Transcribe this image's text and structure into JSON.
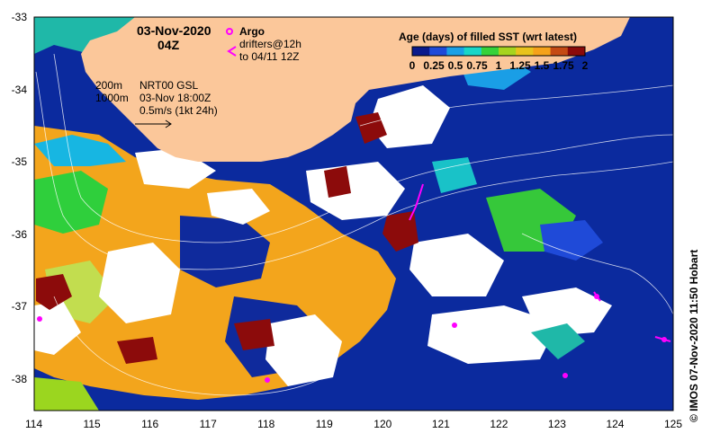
{
  "map": {
    "date": "03-Nov-2020",
    "hour": "04Z",
    "argo_label": "Argo",
    "drifters_label": "drifters@12h",
    "drifters_to": "to 04/11 12Z",
    "contour_200": "200m",
    "contour_1000": "1000m",
    "product": "NRT00 GSL",
    "product_time": "03-Nov 18:00Z",
    "scale": "0.5m/s (1kt 24h)",
    "credit": "© IMOS 07-Nov-2020 11:50 Hobart",
    "lon_ticks": [
      "114",
      "115",
      "116",
      "117",
      "118",
      "119",
      "120",
      "121",
      "122",
      "123",
      "124",
      "125"
    ],
    "lat_ticks": [
      "-33",
      "-34",
      "-35",
      "-36",
      "-37",
      "-38"
    ]
  },
  "legend": {
    "title": "Age (days) of filled SST (wrt latest)",
    "ticks": [
      "0",
      "0.25",
      "0.5",
      "0.75",
      "1",
      "1.25",
      "1.5",
      "1.75",
      "2"
    ],
    "colors": [
      "#0a1a8c",
      "#1f4ad8",
      "#1aa0e6",
      "#19d6c8",
      "#36d23a",
      "#a6d41f",
      "#e8c31c",
      "#f5a21a",
      "#c54a14",
      "#8a0a0a"
    ]
  },
  "colors": {
    "land": "#fbc79a",
    "ocean": "#0a2aa0",
    "argo": "#ff00ff"
  }
}
